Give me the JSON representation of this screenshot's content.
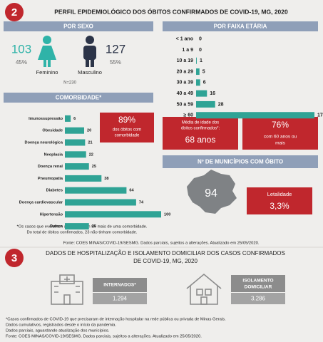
{
  "header": {
    "number": "2",
    "title": "PERFIL EPIDEMIOLÓGICO DOS ÓBITOS CONFIRMADOS DE COVID-19, MG, 2020"
  },
  "sex": {
    "title": "POR SEXO",
    "female": {
      "count": "103",
      "percent": "45%",
      "label": "Feminino"
    },
    "male": {
      "count": "127",
      "percent": "55%",
      "label": "Masculino"
    },
    "total": "N=230"
  },
  "chart_data": [
    {
      "type": "bar",
      "horizontal": true,
      "title": "COMORBIDADE*",
      "color": "#2fa395",
      "categories": [
        "Imunossupressão",
        "Obesidade",
        "Doença neurológica",
        "Neoplasia",
        "Doença renal",
        "Pneumopatia",
        "Diabetes",
        "Doença cardiovascular",
        "Hipertensão",
        "Outros"
      ],
      "values": [
        6,
        20,
        21,
        22,
        25,
        38,
        64,
        74,
        100,
        25
      ]
    },
    {
      "type": "bar",
      "horizontal": true,
      "title": "POR FAIXA ETÁRIA",
      "color": "#2fa395",
      "categories": [
        "< 1 ano",
        "1 a 9",
        "10 a 19",
        "20 a 29",
        "30 a 39",
        "40 a 49",
        "50 a 59",
        "≥ 60"
      ],
      "values": [
        0,
        0,
        1,
        5,
        6,
        16,
        28,
        174
      ]
    }
  ],
  "comorbidity_box": {
    "value": "89%",
    "lines": [
      "dos óbitos com",
      "comorbidade"
    ]
  },
  "comorbidity_notes": [
    "*Os casos que evoluíram a óbito podem ter mais de uma comorbidade.",
    "Do total de óbitos confirmados, 23 não tinham comorbidade."
  ],
  "age_boxes": [
    {
      "lines": [
        "Média de idade dos",
        "óbitos confirmados*:"
      ],
      "value": "68 anos"
    },
    {
      "value": "76%",
      "lines": [
        "com 60 anos ou",
        "mais"
      ]
    }
  ],
  "municipalities": {
    "title": "Nº DE MUNICÍPIOS COM ÓBITO",
    "count": "94",
    "lethality_label": "Letalidade",
    "lethality": "3,3%"
  },
  "source": "Fonte: COES MINAS/COVID-19/SESMG. Dados parciais, sujeitos a alterações. Atualizado em 25/05/2020.",
  "section3": {
    "number": "3",
    "title": [
      "DADOS DE HOSPITALIZAÇÃO E ISOLAMENTO DOMICILIAR DOS CASOS CONFIRMADOS",
      "DE COVID-19, MG, 2020"
    ],
    "hospitalized": {
      "label": "INTERNADOS*",
      "value": "1.294"
    },
    "isolation": {
      "label": [
        "ISOLAMENTO",
        "DOMICILIAR"
      ],
      "value": "3.286"
    },
    "footnotes": [
      "*Casos confirmados de COVID-19 que precisaram de internação hospitalar na rede pública ou privada de Minas Gerais.",
      "Dados cumulativos, registrados desde o início da pandemia.",
      "Dados parciais, aguardando atualização dos municípios.",
      "Fonte: COES MINAS/COVID-19/SESMG. Dados parciais, sujeitos a alterações. Atualizado em 25/05/2020."
    ]
  }
}
